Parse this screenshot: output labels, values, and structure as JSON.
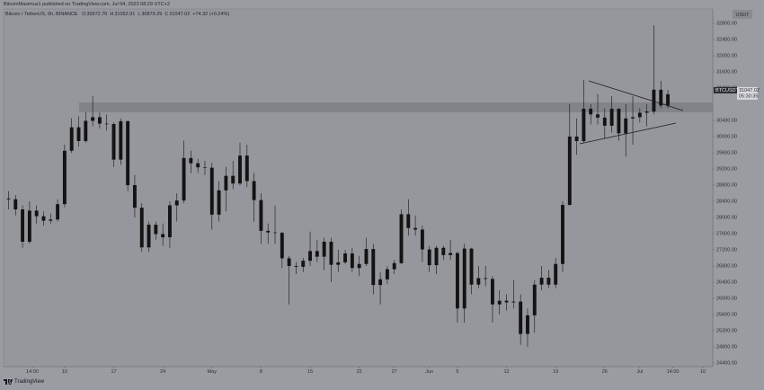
{
  "header": {
    "publisher": "BitcoinMaximus1 published on TradingView.com, Jul 04, 2023 08:29 UTC+2",
    "symbol": "Bitcoin / TetherUS, 6h, BINANCE",
    "ohlc": [
      {
        "label": "O",
        "value": "30972.70"
      },
      {
        "label": "H",
        "value": "31052.91"
      },
      {
        "label": "L",
        "value": "30879.29"
      },
      {
        "label": "C",
        "value": "31047.02"
      }
    ],
    "change": "+74.32 (+0.24%)"
  },
  "footer": {
    "logo": "TradingView"
  },
  "chart_data": {
    "type": "candlestick",
    "color": "#131313",
    "currency": "USDT",
    "symbol_label": "BTCUSDT",
    "last_price": 31047.02,
    "countdown": "05:30:35",
    "xlim": [
      0.3,
      101.4
    ],
    "ylim": [
      24311,
      33156
    ],
    "grid": false,
    "xticks": [
      {
        "value": 4.4,
        "label": "14:00"
      },
      {
        "value": 9,
        "label": "10"
      },
      {
        "value": 16,
        "label": "17"
      },
      {
        "value": 23,
        "label": "24"
      },
      {
        "value": 30,
        "label": "May"
      },
      {
        "value": 37,
        "label": "8"
      },
      {
        "value": 44,
        "label": "15"
      },
      {
        "value": 51,
        "label": "22"
      },
      {
        "value": 56,
        "label": "27"
      },
      {
        "value": 61,
        "label": "Jun"
      },
      {
        "value": 65,
        "label": "5"
      },
      {
        "value": 72,
        "label": "12"
      },
      {
        "value": 79,
        "label": "19"
      },
      {
        "value": 86,
        "label": "26"
      },
      {
        "value": 91,
        "label": "Jul"
      },
      {
        "value": 95.7,
        "label": "14:00"
      },
      {
        "value": 100,
        "label": "10"
      }
    ],
    "yticks": [
      {
        "value": 24400,
        "label": "24400.00"
      },
      {
        "value": 24800,
        "label": "24800.00"
      },
      {
        "value": 25200,
        "label": "25200.00"
      },
      {
        "value": 25600,
        "label": "25600.00"
      },
      {
        "value": 26000,
        "label": "26000.00"
      },
      {
        "value": 26400,
        "label": "26400.00"
      },
      {
        "value": 26800,
        "label": "26800.00"
      },
      {
        "value": 27200,
        "label": "27200.00"
      },
      {
        "value": 27600,
        "label": "27600.00"
      },
      {
        "value": 28000,
        "label": "28000.00"
      },
      {
        "value": 28400,
        "label": "28400.00"
      },
      {
        "value": 28800,
        "label": "28800.00"
      },
      {
        "value": 29200,
        "label": "29200.00"
      },
      {
        "value": 29600,
        "label": "29600.00"
      },
      {
        "value": 30000,
        "label": "30000.00"
      },
      {
        "value": 30400,
        "label": "30400.00"
      },
      {
        "value": 31200,
        "label": "31200.00"
      },
      {
        "value": 31600,
        "label": "31600.00"
      },
      {
        "value": 32000,
        "label": "32000.00"
      },
      {
        "value": 32400,
        "label": "32400.00"
      },
      {
        "value": 32800,
        "label": "32800.00"
      }
    ],
    "x": [
      1,
      2,
      3,
      4,
      5,
      6,
      7,
      8,
      9,
      10,
      11,
      12,
      13,
      14,
      15,
      16,
      17,
      18,
      19,
      20,
      21,
      22,
      23,
      24,
      25,
      26,
      27,
      28,
      29,
      30,
      31,
      32,
      33,
      34,
      35,
      36,
      37,
      38,
      39,
      40,
      41,
      42,
      43,
      44,
      45,
      46,
      47,
      48,
      49,
      50,
      51,
      52,
      53,
      54,
      55,
      56,
      57,
      58,
      59,
      60,
      61,
      62,
      63,
      64,
      65,
      66,
      67,
      68,
      69,
      70,
      71,
      72,
      73,
      74,
      75,
      76,
      77,
      78,
      79,
      80,
      81,
      82,
      83,
      84,
      85,
      86,
      87,
      88,
      89,
      90,
      91,
      92,
      93,
      94,
      95
    ],
    "open": [
      28470,
      28450,
      28200,
      27400,
      28170,
      28030,
      27920,
      27950,
      28330,
      29650,
      30230,
      29890,
      30390,
      30480,
      30320,
      30310,
      29430,
      30380,
      28800,
      28240,
      27260,
      27820,
      27590,
      27510,
      28300,
      28420,
      29470,
      29340,
      29240,
      29230,
      28070,
      28670,
      29030,
      28840,
      29530,
      28900,
      28430,
      27670,
      27630,
      27620,
      26990,
      26800,
      26780,
      26930,
      27170,
      27030,
      27400,
      26830,
      26890,
      27110,
      26750,
      26850,
      27220,
      26330,
      26470,
      26720,
      26870,
      28080,
      27740,
      27700,
      27210,
      26820,
      27250,
      27070,
      27120,
      25750,
      27230,
      26340,
      26500,
      26480,
      25850,
      25940,
      25900,
      25920,
      25120,
      25580,
      26340,
      26510,
      26340,
      26850,
      28310,
      30000,
      29890,
      30690,
      30550,
      30470,
      30270,
      30690,
      30080,
      30450,
      30480,
      30590,
      30620,
      31160,
      30770
    ],
    "high": [
      28650,
      28550,
      28300,
      28400,
      28300,
      28150,
      28100,
      28450,
      29800,
      30450,
      30500,
      30600,
      31000,
      30600,
      30550,
      30350,
      30450,
      30400,
      29050,
      28350,
      27900,
      27900,
      27850,
      28400,
      28600,
      29900,
      29650,
      29450,
      29400,
      29350,
      28900,
      29250,
      29400,
      29850,
      29800,
      29100,
      28600,
      27850,
      28300,
      27650,
      27050,
      26900,
      27000,
      27650,
      27450,
      27500,
      27500,
      27200,
      27200,
      27250,
      27050,
      27500,
      27350,
      26650,
      26800,
      26950,
      28200,
      28450,
      28050,
      27800,
      27300,
      27300,
      27300,
      27450,
      27150,
      27350,
      27250,
      26800,
      26800,
      26550,
      26200,
      26100,
      26450,
      26100,
      25750,
      26450,
      26800,
      26700,
      27000,
      28400,
      30800,
      30450,
      31400,
      30800,
      31050,
      30700,
      31000,
      30700,
      30800,
      31000,
      30700,
      30800,
      32750,
      31380,
      31150
    ],
    "low": [
      28200,
      28050,
      27250,
      27350,
      27850,
      27800,
      27850,
      27900,
      28250,
      29600,
      29750,
      29850,
      30250,
      30200,
      30150,
      29250,
      29300,
      28650,
      28000,
      27150,
      27150,
      27450,
      27300,
      27250,
      27900,
      28350,
      29100,
      29100,
      29050,
      27700,
      27900,
      28150,
      28700,
      28800,
      28750,
      27900,
      27350,
      27350,
      27350,
      26750,
      25850,
      26600,
      26650,
      26800,
      26900,
      26700,
      26400,
      26650,
      26850,
      26650,
      26550,
      26800,
      26100,
      25850,
      26350,
      26600,
      26850,
      27550,
      27550,
      26900,
      26650,
      26600,
      26950,
      26950,
      25400,
      25400,
      26100,
      26250,
      26300,
      25400,
      25600,
      25700,
      25750,
      24850,
      24800,
      25150,
      26200,
      26250,
      26250,
      26650,
      28300,
      29550,
      29850,
      30300,
      30300,
      29950,
      30100,
      29900,
      29500,
      29800,
      30350,
      30250,
      30550,
      30700,
      30700
    ],
    "close": [
      28450,
      28200,
      27400,
      28170,
      28030,
      27920,
      27950,
      28330,
      29650,
      30230,
      29890,
      30390,
      30480,
      30320,
      30310,
      29430,
      30380,
      28800,
      28240,
      27260,
      27820,
      27590,
      27510,
      28300,
      28420,
      29470,
      29340,
      29240,
      29230,
      28070,
      28670,
      29030,
      28840,
      29530,
      28900,
      28430,
      27670,
      27630,
      27620,
      26990,
      26800,
      26780,
      26930,
      27170,
      27030,
      27400,
      26830,
      26890,
      27110,
      26750,
      26850,
      27220,
      26330,
      26470,
      26720,
      26870,
      28080,
      27740,
      27700,
      27210,
      26820,
      27250,
      27070,
      27120,
      25750,
      27230,
      26340,
      26500,
      26480,
      25850,
      25940,
      25900,
      25920,
      25120,
      25580,
      26340,
      26510,
      26340,
      26850,
      28310,
      30000,
      29890,
      30690,
      30550,
      30470,
      30270,
      30690,
      30080,
      30450,
      30480,
      30590,
      30620,
      31160,
      30770,
      31047.02
    ]
  }
}
